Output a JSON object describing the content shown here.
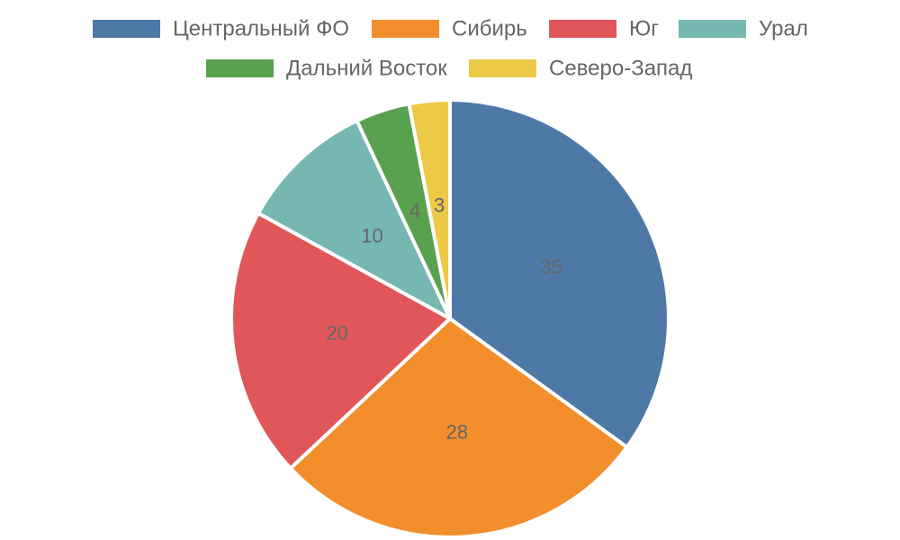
{
  "chart_data": {
    "type": "pie",
    "title": "",
    "legend_position": "top",
    "categories": [
      "Центральный ФО",
      "Сибирь",
      "Юг",
      "Урал",
      "Дальний Восток",
      "Северо-Запад"
    ],
    "values": [
      35,
      28,
      20,
      10,
      4,
      3
    ],
    "colors": [
      "#4e79a7",
      "#f28e2b",
      "#e15759",
      "#76b7b2",
      "#59a14f",
      "#edc948"
    ],
    "data_labels": [
      "35",
      "28",
      "20",
      "10",
      "4",
      "3"
    ]
  }
}
